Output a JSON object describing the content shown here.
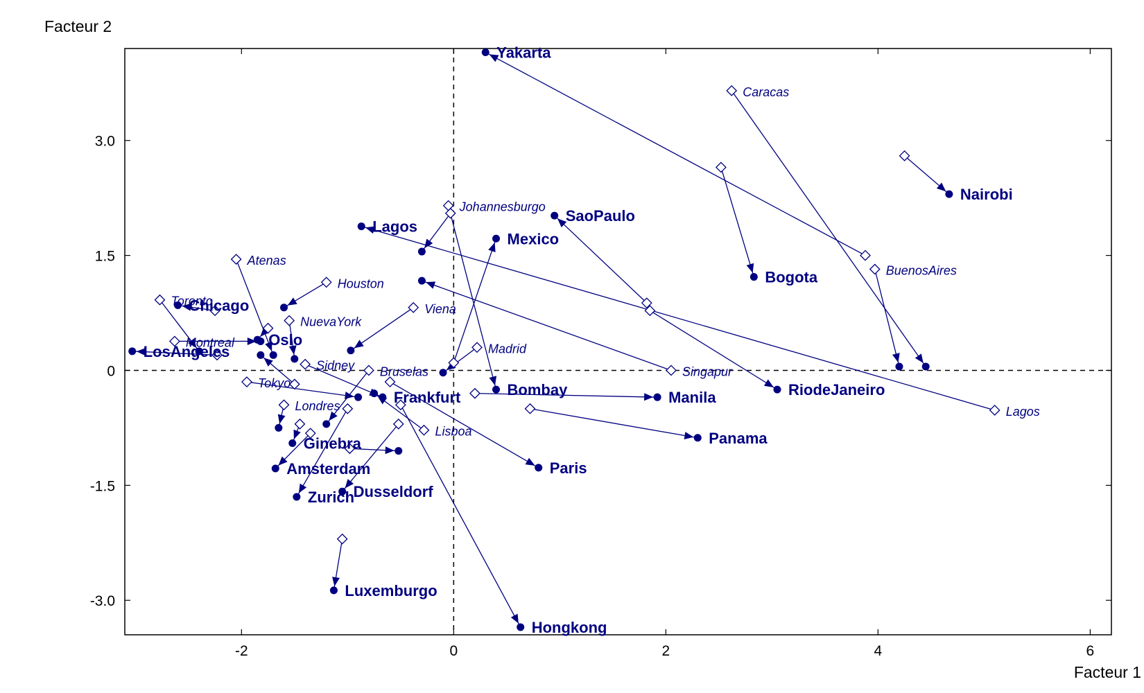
{
  "chart_data": {
    "type": "scatter",
    "xlabel": "Facteur 1",
    "ylabel": "Facteur 2",
    "xlim": [
      -3.1,
      6.2
    ],
    "ylim": [
      -3.45,
      4.2
    ],
    "x_ticks": [
      {
        "value": -2,
        "label": "-2"
      },
      {
        "value": 0,
        "label": "0"
      },
      {
        "value": 2,
        "label": "2"
      },
      {
        "value": 4,
        "label": "4"
      },
      {
        "value": 6,
        "label": "6"
      }
    ],
    "y_ticks": [
      {
        "value": 3.0,
        "label": "3.0"
      },
      {
        "value": 1.5,
        "label": "1.5"
      },
      {
        "value": 0,
        "label": "0"
      },
      {
        "value": -1.5,
        "label": "-1.5"
      },
      {
        "value": -3.0,
        "label": "-3.0"
      }
    ],
    "reference_lines": {
      "x": 0,
      "y": 0,
      "style": "dashed"
    },
    "marker_start": "open-diamond",
    "marker_end": "filled-circle",
    "colors": {
      "marks": "#000080",
      "axes": "#000000"
    },
    "cities": [
      {
        "start": {
          "label": "Caracas",
          "x": 2.62,
          "y": 3.65
        },
        "end": {
          "label": "",
          "x": 4.45,
          "y": 0.05
        }
      },
      {
        "start": {
          "label": "",
          "x": 4.25,
          "y": 2.8
        },
        "end": {
          "label": "Nairobi",
          "x": 4.67,
          "y": 2.3
        }
      },
      {
        "start": {
          "label": "",
          "x": 3.88,
          "y": 1.5
        },
        "end": {
          "label": "Yakarta",
          "x": 0.3,
          "y": 4.15
        }
      },
      {
        "start": {
          "label": "BuenosAires",
          "x": 3.97,
          "y": 1.32
        },
        "end": {
          "label": "",
          "x": 4.2,
          "y": 0.05
        }
      },
      {
        "start": {
          "label": "",
          "x": 2.52,
          "y": 2.65
        },
        "end": {
          "label": "Bogota",
          "x": 2.83,
          "y": 1.22
        }
      },
      {
        "start": {
          "label": "Lagos",
          "x": 5.1,
          "y": -0.52
        },
        "end": {
          "label": "Lagos",
          "x": -0.87,
          "y": 1.88
        }
      },
      {
        "start": {
          "label": "",
          "x": 1.82,
          "y": 0.88
        },
        "end": {
          "label": "SaoPaulo",
          "x": 0.95,
          "y": 2.02
        }
      },
      {
        "start": {
          "label": "",
          "x": 1.85,
          "y": 0.78
        },
        "end": {
          "label": "RiodeJaneiro",
          "x": 3.05,
          "y": -0.25
        }
      },
      {
        "start": {
          "label": "Singapur",
          "x": 2.05,
          "y": 0
        },
        "end": {
          "label": "",
          "x": -0.3,
          "y": 1.17
        }
      },
      {
        "start": {
          "label": "",
          "x": -0.03,
          "y": 2.05
        },
        "end": {
          "label": "",
          "x": -0.3,
          "y": 1.55
        }
      },
      {
        "start": {
          "label": "Johannesburgo",
          "x": -0.05,
          "y": 2.15
        },
        "end": {
          "label": "Bombay",
          "x": 0.4,
          "y": -0.25
        }
      },
      {
        "start": {
          "label": "",
          "x": 0,
          "y": 0.1
        },
        "end": {
          "label": "Mexico",
          "x": 0.4,
          "y": 1.72
        }
      },
      {
        "start": {
          "label": "Madrid",
          "x": 0.22,
          "y": 0.3
        },
        "end": {
          "label": "",
          "x": -0.1,
          "y": -0.03
        }
      },
      {
        "start": {
          "label": "",
          "x": 0.2,
          "y": -0.3
        },
        "end": {
          "label": "Manila",
          "x": 1.92,
          "y": -0.35
        }
      },
      {
        "start": {
          "label": "",
          "x": 0.72,
          "y": -0.5
        },
        "end": {
          "label": "Panama",
          "x": 2.3,
          "y": -0.88
        }
      },
      {
        "start": {
          "label": "Viena",
          "x": -0.38,
          "y": 0.82
        },
        "end": {
          "label": "",
          "x": -0.97,
          "y": 0.26
        }
      },
      {
        "start": {
          "label": "Houston",
          "x": -1.2,
          "y": 1.15
        },
        "end": {
          "label": "",
          "x": -1.6,
          "y": 0.82
        }
      },
      {
        "start": {
          "label": "NuevaYork",
          "x": -1.55,
          "y": 0.65
        },
        "end": {
          "label": "",
          "x": -1.5,
          "y": 0.15
        }
      },
      {
        "start": {
          "label": "",
          "x": -1.75,
          "y": 0.55
        },
        "end": {
          "label": "Oslo",
          "x": -1.85,
          "y": 0.4
        }
      },
      {
        "start": {
          "label": "Atenas",
          "x": -2.05,
          "y": 1.45
        },
        "end": {
          "label": "",
          "x": -1.7,
          "y": 0.2
        }
      },
      {
        "start": {
          "label": "",
          "x": -2.25,
          "y": 0.78
        },
        "end": {
          "label": "Chicago",
          "x": -2.6,
          "y": 0.85
        }
      },
      {
        "start": {
          "label": "Toronto",
          "x": -2.77,
          "y": 0.92
        },
        "end": {
          "label": "",
          "x": -2.4,
          "y": 0.25
        }
      },
      {
        "start": {
          "label": "Montreal",
          "x": -2.63,
          "y": 0.38
        },
        "end": {
          "label": "",
          "x": -1.82,
          "y": 0.38
        }
      },
      {
        "start": {
          "label": "",
          "x": -2.23,
          "y": 0.2
        },
        "end": {
          "label": "LosAngeles",
          "x": -3.03,
          "y": 0.25
        }
      },
      {
        "start": {
          "label": "Sidney",
          "x": -1.4,
          "y": 0.08
        },
        "end": {
          "label": "Frankfurt",
          "x": -0.67,
          "y": -0.35
        }
      },
      {
        "start": {
          "label": "",
          "x": -1.5,
          "y": -0.18
        },
        "end": {
          "label": "",
          "x": -1.82,
          "y": 0.2
        }
      },
      {
        "start": {
          "label": "Tokyo",
          "x": -1.95,
          "y": -0.15
        },
        "end": {
          "label": "",
          "x": -0.9,
          "y": -0.35
        }
      },
      {
        "start": {
          "label": "Bruselas",
          "x": -0.8,
          "y": 0
        },
        "end": {
          "label": "",
          "x": -1.2,
          "y": -0.7
        }
      },
      {
        "start": {
          "label": "",
          "x": -0.6,
          "y": -0.15
        },
        "end": {
          "label": "Paris",
          "x": 0.8,
          "y": -1.27
        }
      },
      {
        "start": {
          "label": "",
          "x": -0.5,
          "y": -0.45
        },
        "end": {
          "label": "Hongkong",
          "x": 0.63,
          "y": -3.35
        }
      },
      {
        "start": {
          "label": "Lisboa",
          "x": -0.28,
          "y": -0.78
        },
        "end": {
          "label": "",
          "x": -0.75,
          "y": -0.3
        }
      },
      {
        "start": {
          "label": "",
          "x": -0.52,
          "y": -0.7
        },
        "end": {
          "label": "Dusseldorf",
          "x": -1.05,
          "y": -1.58
        }
      },
      {
        "start": {
          "label": "",
          "x": -1.0,
          "y": -0.5
        },
        "end": {
          "label": "Zurich",
          "x": -1.48,
          "y": -1.65
        }
      },
      {
        "start": {
          "label": "",
          "x": -0.98,
          "y": -1.02
        },
        "end": {
          "label": "",
          "x": -0.52,
          "y": -1.05
        }
      },
      {
        "start": {
          "label": "",
          "x": -1.35,
          "y": -0.82
        },
        "end": {
          "label": "Amsterdam",
          "x": -1.68,
          "y": -1.28
        }
      },
      {
        "start": {
          "label": "",
          "x": -1.45,
          "y": -0.7
        },
        "end": {
          "label": "Ginebra",
          "x": -1.52,
          "y": -0.95
        }
      },
      {
        "start": {
          "label": "Londres",
          "x": -1.6,
          "y": -0.45
        },
        "end": {
          "label": "",
          "x": -1.65,
          "y": -0.75
        }
      },
      {
        "start": {
          "label": "",
          "x": -1.05,
          "y": -2.2
        },
        "end": {
          "label": "Luxemburgo",
          "x": -1.13,
          "y": -2.87
        }
      }
    ]
  }
}
